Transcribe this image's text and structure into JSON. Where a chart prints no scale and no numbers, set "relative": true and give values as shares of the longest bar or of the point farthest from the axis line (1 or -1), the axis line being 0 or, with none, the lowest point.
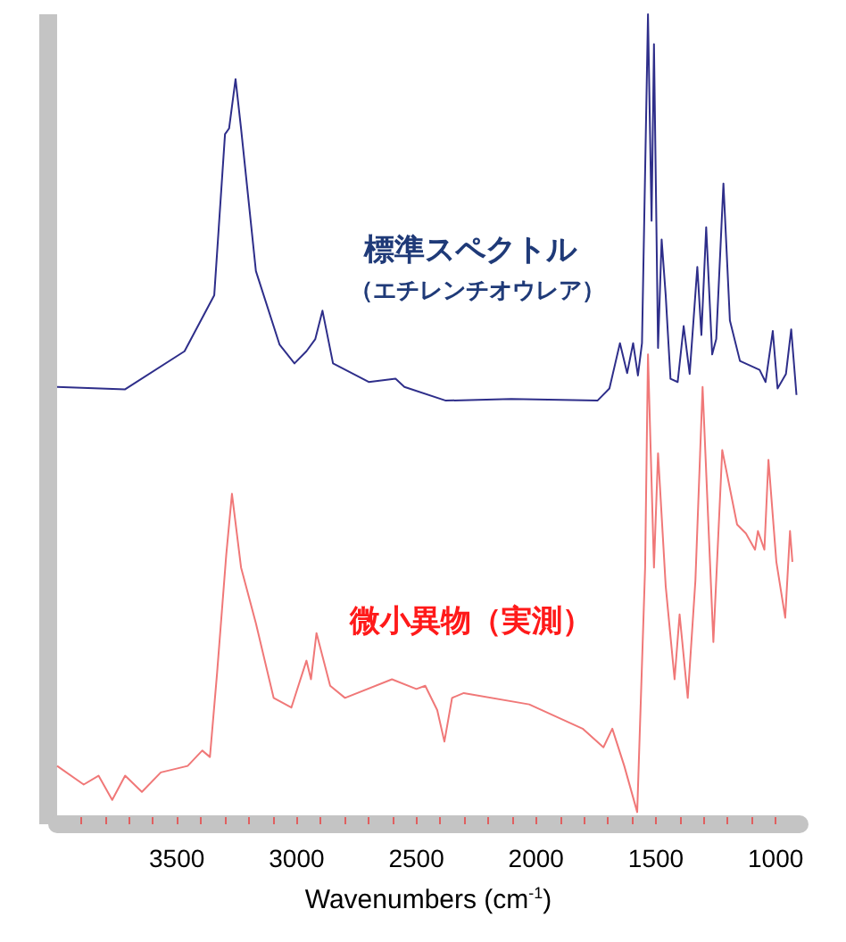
{
  "chart_data": {
    "type": "line",
    "relative": true,
    "xlabel": "Wavenumbers (cm$^{-1}$)",
    "xlim": [
      4000,
      900
    ],
    "xticks": [
      {
        "value": 3900,
        "label": null
      },
      {
        "value": 3800,
        "label": null
      },
      {
        "value": 3700,
        "label": null
      },
      {
        "value": 3600,
        "label": null
      },
      3500,
      {
        "value": 3400,
        "label": null
      },
      {
        "value": 3300,
        "label": null
      },
      {
        "value": 3200,
        "label": null
      },
      {
        "value": 3100,
        "label": null
      },
      3000,
      {
        "value": 2900,
        "label": null
      },
      {
        "value": 2800,
        "label": null
      },
      {
        "value": 2700,
        "label": null
      },
      {
        "value": 2600,
        "label": null
      },
      2500,
      {
        "value": 2400,
        "label": null
      },
      {
        "value": 2300,
        "label": null
      },
      {
        "value": 2200,
        "label": null
      },
      {
        "value": 2100,
        "label": null
      },
      2000,
      {
        "value": 1900,
        "label": null
      },
      {
        "value": 1800,
        "label": null
      },
      {
        "value": 1700,
        "label": null
      },
      {
        "value": 1600,
        "label": null
      },
      1500,
      {
        "value": 1400,
        "label": null
      },
      {
        "value": 1300,
        "label": null
      },
      {
        "value": 1200,
        "label": null
      },
      {
        "value": 1100,
        "label": null
      },
      1000
    ],
    "grid": false,
    "legend": false,
    "marker": "none",
    "line_style": "solid",
    "series": [
      {
        "name": "標準スペクトル（エチレンチオウレア）",
        "color": "#2e2e8a",
        "x": [
          4000,
          3716,
          3468,
          3344,
          3299,
          3282,
          3255,
          3232,
          3170,
          3071,
          3009,
          2959,
          2922,
          2892,
          2848,
          2699,
          2587,
          2550,
          2377,
          2104,
          1744,
          1694,
          1650,
          1620,
          1595,
          1575,
          1558,
          1533,
          1518,
          1508,
          1491,
          1476,
          1459,
          1439,
          1409,
          1384,
          1359,
          1327,
          1310,
          1290,
          1265,
          1248,
          1218,
          1191,
          1149,
          1067,
          1042,
          1012,
          992,
          957,
          935,
          913
        ],
        "values": [
          0.54,
          0.537,
          0.584,
          0.653,
          0.852,
          0.859,
          0.92,
          0.859,
          0.683,
          0.592,
          0.569,
          0.584,
          0.599,
          0.634,
          0.569,
          0.546,
          0.55,
          0.54,
          0.523,
          0.525,
          0.523,
          0.538,
          0.594,
          0.557,
          0.594,
          0.554,
          0.594,
          1,
          0.745,
          0.963,
          0.588,
          0.722,
          0.653,
          0.55,
          0.546,
          0.615,
          0.556,
          0.688,
          0.604,
          0.737,
          0.58,
          0.599,
          0.791,
          0.622,
          0.572,
          0.561,
          0.546,
          0.609,
          0.538,
          0.556,
          0.611,
          0.53
        ]
      },
      {
        "name": "微小異物（実測）",
        "color": "#f07878",
        "x": [
          4000,
          3889,
          3827,
          3770,
          3716,
          3646,
          3567,
          3455,
          3394,
          3362,
          3332,
          3294,
          3270,
          3232,
          3170,
          3096,
          3022,
          2959,
          2940,
          2917,
          2860,
          2798,
          2602,
          2500,
          2463,
          2413,
          2383,
          2351,
          2302,
          2029,
          1806,
          1719,
          1682,
          1632,
          1578,
          1545,
          1533,
          1508,
          1491,
          1459,
          1422,
          1401,
          1367,
          1335,
          1305,
          1260,
          1223,
          1161,
          1124,
          1086,
          1074,
          1047,
          1030,
          997,
          960,
          940,
          930
        ],
        "values": [
          0.072,
          0.049,
          0.06,
          0.03,
          0.06,
          0.04,
          0.064,
          0.072,
          0.091,
          0.083,
          0.187,
          0.332,
          0.408,
          0.317,
          0.248,
          0.156,
          0.144,
          0.202,
          0.179,
          0.236,
          0.171,
          0.156,
          0.179,
          0.167,
          0.171,
          0.141,
          0.102,
          0.156,
          0.162,
          0.148,
          0.118,
          0.095,
          0.118,
          0.072,
          0.015,
          0.317,
          0.58,
          0.317,
          0.458,
          0.294,
          0.179,
          0.259,
          0.156,
          0.301,
          0.54,
          0.225,
          0.462,
          0.37,
          0.359,
          0.339,
          0.362,
          0.339,
          0.45,
          0.324,
          0.255,
          0.362,
          0.324
        ]
      }
    ]
  }
}
